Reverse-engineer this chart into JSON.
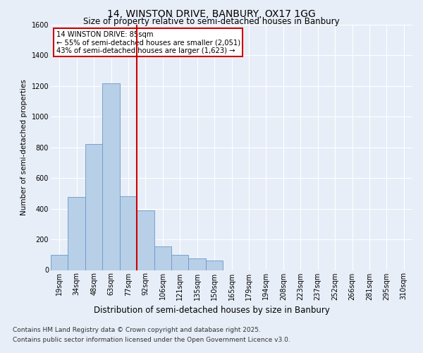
{
  "title1": "14, WINSTON DRIVE, BANBURY, OX17 1GG",
  "title2": "Size of property relative to semi-detached houses in Banbury",
  "xlabel": "Distribution of semi-detached houses by size in Banbury",
  "ylabel": "Number of semi-detached properties",
  "categories": [
    "19sqm",
    "34sqm",
    "48sqm",
    "63sqm",
    "77sqm",
    "92sqm",
    "106sqm",
    "121sqm",
    "135sqm",
    "150sqm",
    "165sqm",
    "179sqm",
    "194sqm",
    "208sqm",
    "223sqm",
    "237sqm",
    "252sqm",
    "266sqm",
    "281sqm",
    "295sqm",
    "310sqm"
  ],
  "values": [
    100,
    475,
    820,
    1220,
    480,
    390,
    155,
    100,
    75,
    60,
    0,
    0,
    0,
    0,
    0,
    0,
    0,
    0,
    0,
    0,
    0
  ],
  "bar_color": "#b8cfe8",
  "bar_edge_color": "#6699cc",
  "vline_color": "#cc0000",
  "ylim": [
    0,
    1600
  ],
  "yticks": [
    0,
    200,
    400,
    600,
    800,
    1000,
    1200,
    1400,
    1600
  ],
  "annotation_title": "14 WINSTON DRIVE: 85sqm",
  "annotation_line1": "← 55% of semi-detached houses are smaller (2,051)",
  "annotation_line2": "43% of semi-detached houses are larger (1,623) →",
  "annotation_box_color": "#cc0000",
  "footer1": "Contains HM Land Registry data © Crown copyright and database right 2025.",
  "footer2": "Contains public sector information licensed under the Open Government Licence v3.0.",
  "bg_color": "#e8eef7",
  "plot_bg_color": "#e8eef7",
  "grid_color": "#ffffff",
  "title1_fontsize": 10,
  "title2_fontsize": 8.5,
  "xlabel_fontsize": 8.5,
  "ylabel_fontsize": 7.5,
  "tick_fontsize": 7,
  "footer_fontsize": 6.5
}
